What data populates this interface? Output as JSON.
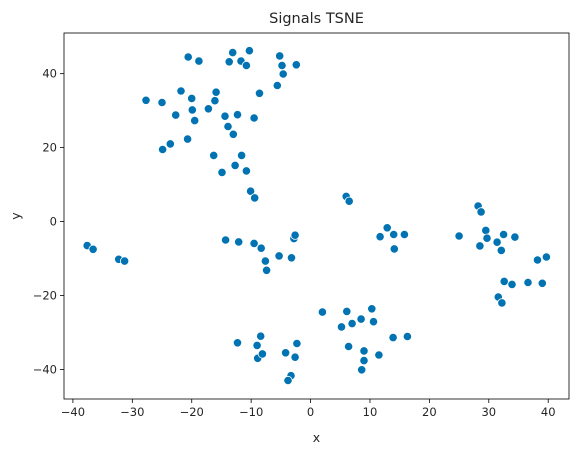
{
  "chart_data": {
    "type": "scatter",
    "title": "Signals TSNE",
    "xlabel": "x",
    "ylabel": "y",
    "xlim": [
      -41.5,
      43.5
    ],
    "ylim": [
      -48,
      51
    ],
    "xticks": [
      -40,
      -30,
      -20,
      -10,
      0,
      10,
      20,
      30,
      40
    ],
    "yticks": [
      -40,
      -20,
      0,
      20,
      40
    ],
    "grid": false,
    "marker_color": "#0173b2",
    "marker_edge_color": "#ffffff",
    "points": [
      {
        "x": -37.6,
        "y": -6.5
      },
      {
        "x": -36.6,
        "y": -7.5
      },
      {
        "x": -32.3,
        "y": -10.2
      },
      {
        "x": -31.3,
        "y": -10.7
      },
      {
        "x": -27.7,
        "y": 32.8
      },
      {
        "x": -25.0,
        "y": 32.2
      },
      {
        "x": -24.9,
        "y": 19.5
      },
      {
        "x": -23.6,
        "y": 21.0
      },
      {
        "x": -22.7,
        "y": 28.8
      },
      {
        "x": -21.8,
        "y": 35.3
      },
      {
        "x": -20.7,
        "y": 22.3
      },
      {
        "x": -20.6,
        "y": 44.5
      },
      {
        "x": -20.0,
        "y": 33.3
      },
      {
        "x": -19.9,
        "y": 30.2
      },
      {
        "x": -19.5,
        "y": 27.3
      },
      {
        "x": -18.8,
        "y": 43.4
      },
      {
        "x": -17.2,
        "y": 30.5
      },
      {
        "x": -16.3,
        "y": 17.9
      },
      {
        "x": -16.1,
        "y": 32.7
      },
      {
        "x": -15.9,
        "y": 35.0
      },
      {
        "x": -14.9,
        "y": 13.3
      },
      {
        "x": -14.4,
        "y": 28.5
      },
      {
        "x": -13.9,
        "y": 25.7
      },
      {
        "x": -13.7,
        "y": 43.2
      },
      {
        "x": -13.1,
        "y": 45.7
      },
      {
        "x": -13.0,
        "y": 23.6
      },
      {
        "x": -12.7,
        "y": 15.2
      },
      {
        "x": -12.3,
        "y": 28.9
      },
      {
        "x": -11.7,
        "y": 43.4
      },
      {
        "x": -11.6,
        "y": 17.9
      },
      {
        "x": -10.8,
        "y": 42.2
      },
      {
        "x": -10.8,
        "y": 13.7
      },
      {
        "x": -10.3,
        "y": 46.2
      },
      {
        "x": -10.1,
        "y": 8.2
      },
      {
        "x": -9.5,
        "y": 28.0
      },
      {
        "x": -9.4,
        "y": 6.4
      },
      {
        "x": -8.6,
        "y": 34.7
      },
      {
        "x": -5.6,
        "y": 36.8
      },
      {
        "x": -5.2,
        "y": 44.8
      },
      {
        "x": -4.8,
        "y": 42.2
      },
      {
        "x": -4.6,
        "y": 39.9
      },
      {
        "x": -2.4,
        "y": 42.4
      },
      {
        "x": -14.3,
        "y": -5.0
      },
      {
        "x": -12.1,
        "y": -5.5
      },
      {
        "x": -9.5,
        "y": -5.9
      },
      {
        "x": -8.3,
        "y": -7.2
      },
      {
        "x": -7.6,
        "y": -10.7
      },
      {
        "x": -7.4,
        "y": -13.2
      },
      {
        "x": -5.3,
        "y": -9.3
      },
      {
        "x": -3.2,
        "y": -9.8
      },
      {
        "x": -2.8,
        "y": -4.6
      },
      {
        "x": -2.6,
        "y": -3.7
      },
      {
        "x": 6.0,
        "y": 6.8
      },
      {
        "x": 6.5,
        "y": 5.5
      },
      {
        "x": 11.7,
        "y": -4.1
      },
      {
        "x": 12.9,
        "y": -1.7
      },
      {
        "x": 14.0,
        "y": -3.5
      },
      {
        "x": 14.1,
        "y": -7.4
      },
      {
        "x": 15.8,
        "y": -3.5
      },
      {
        "x": -12.3,
        "y": -32.8
      },
      {
        "x": -9.0,
        "y": -33.5
      },
      {
        "x": -8.4,
        "y": -31.0
      },
      {
        "x": -8.9,
        "y": -37.0
      },
      {
        "x": -8.1,
        "y": -35.8
      },
      {
        "x": -4.2,
        "y": -35.5
      },
      {
        "x": -3.3,
        "y": -41.7
      },
      {
        "x": -3.8,
        "y": -43.0
      },
      {
        "x": -2.6,
        "y": -36.7
      },
      {
        "x": -2.3,
        "y": -33.0
      },
      {
        "x": 2.0,
        "y": -24.5
      },
      {
        "x": 5.2,
        "y": -28.5
      },
      {
        "x": 6.1,
        "y": -24.3
      },
      {
        "x": 6.4,
        "y": -33.8
      },
      {
        "x": 7.0,
        "y": -27.6
      },
      {
        "x": 8.5,
        "y": -26.4
      },
      {
        "x": 8.6,
        "y": -40.1
      },
      {
        "x": 9.0,
        "y": -35.0
      },
      {
        "x": 9.0,
        "y": -37.6
      },
      {
        "x": 10.3,
        "y": -23.6
      },
      {
        "x": 10.6,
        "y": -27.1
      },
      {
        "x": 11.5,
        "y": -36.1
      },
      {
        "x": 13.9,
        "y": -31.4
      },
      {
        "x": 16.3,
        "y": -31.1
      },
      {
        "x": 25.0,
        "y": -3.9
      },
      {
        "x": 28.2,
        "y": 4.2
      },
      {
        "x": 28.5,
        "y": -6.6
      },
      {
        "x": 28.7,
        "y": 2.6
      },
      {
        "x": 29.5,
        "y": -2.4
      },
      {
        "x": 29.7,
        "y": -4.5
      },
      {
        "x": 31.4,
        "y": -5.6
      },
      {
        "x": 32.1,
        "y": -7.8
      },
      {
        "x": 32.5,
        "y": -3.5
      },
      {
        "x": 34.4,
        "y": -4.2
      },
      {
        "x": 31.6,
        "y": -20.4
      },
      {
        "x": 32.2,
        "y": -22.0
      },
      {
        "x": 32.6,
        "y": -16.2
      },
      {
        "x": 33.9,
        "y": -17.0
      },
      {
        "x": 36.6,
        "y": -16.5
      },
      {
        "x": 38.2,
        "y": -10.4
      },
      {
        "x": 39.0,
        "y": -16.7
      },
      {
        "x": 39.7,
        "y": -9.6
      }
    ]
  }
}
